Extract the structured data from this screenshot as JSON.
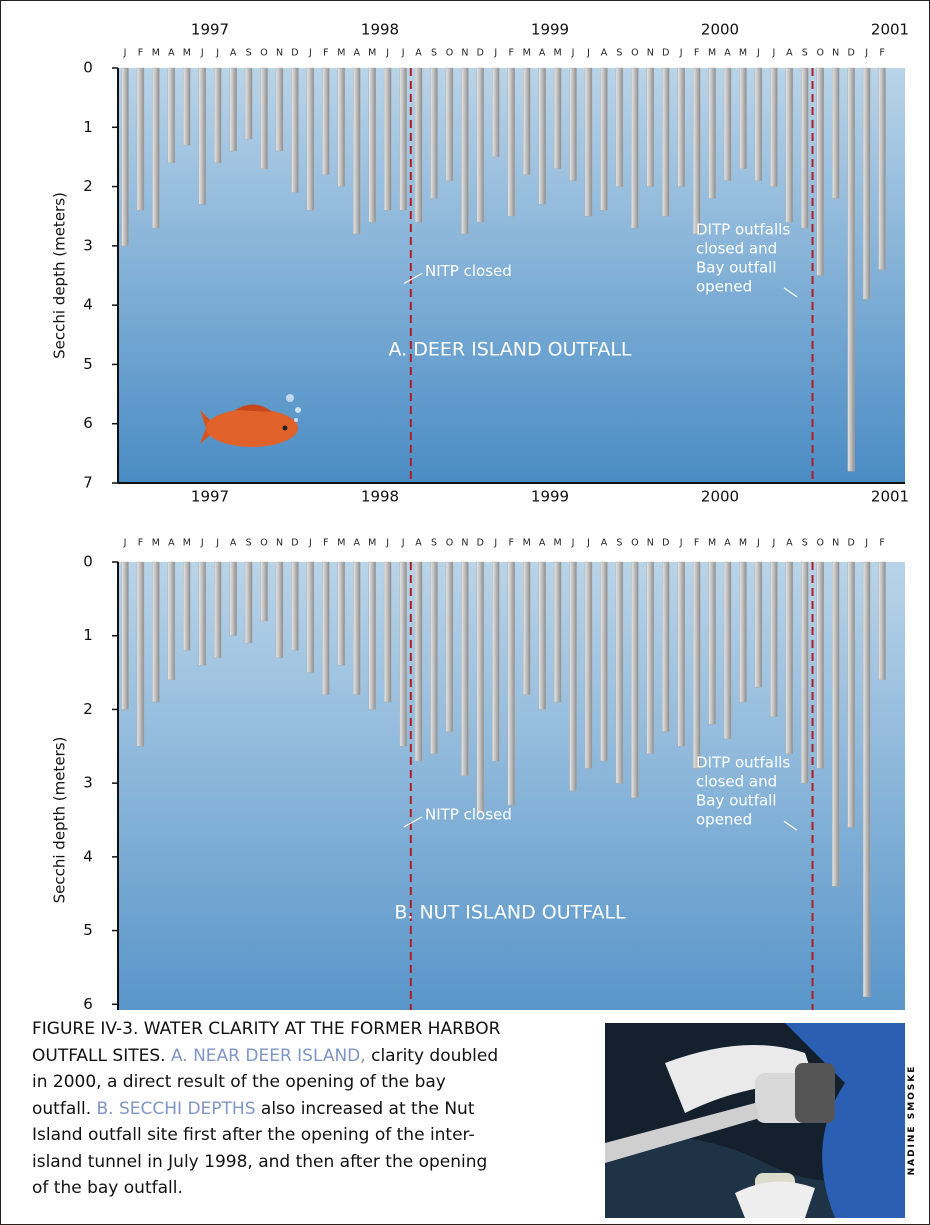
{
  "chart_data": [
    {
      "type": "bar",
      "subtitle": "A. DEER ISLAND OUTFALL",
      "y_label": "Secchi depth (meters)",
      "years": [
        "1997",
        "1998",
        "1999",
        "2000",
        "2001"
      ],
      "categories": [
        "J",
        "F",
        "M",
        "A",
        "M",
        "J",
        "J",
        "A",
        "S",
        "O",
        "N",
        "D",
        "J",
        "F",
        "M",
        "A",
        "M",
        "J",
        "J",
        "A",
        "S",
        "O",
        "N",
        "D",
        "J",
        "F",
        "M",
        "A",
        "M",
        "J",
        "J",
        "A",
        "S",
        "O",
        "N",
        "D",
        "J",
        "F",
        "M",
        "A",
        "M",
        "J",
        "J",
        "A",
        "S",
        "O",
        "N",
        "D",
        "J",
        "F"
      ],
      "values": [
        3.0,
        2.4,
        2.7,
        1.6,
        1.3,
        2.3,
        1.6,
        1.4,
        1.2,
        1.7,
        1.4,
        2.1,
        2.4,
        1.8,
        2.0,
        2.8,
        2.6,
        2.4,
        2.4,
        2.6,
        2.2,
        1.9,
        2.8,
        2.6,
        1.5,
        2.5,
        1.8,
        2.3,
        1.7,
        1.9,
        2.5,
        2.4,
        2.0,
        2.7,
        2.0,
        2.5,
        2.0,
        2.8,
        2.2,
        1.9,
        1.7,
        1.9,
        2.0,
        2.6,
        2.7,
        3.5,
        2.2,
        6.8,
        3.9,
        3.4
      ],
      "color": "#a9a9a9",
      "ylim": [
        0,
        7
      ],
      "yticks": [
        0,
        1,
        2,
        3,
        4,
        5,
        6,
        7
      ],
      "y_inverted": true,
      "annotations": [
        {
          "lines": [
            "NITP closed"
          ]
        },
        {
          "lines": [
            "DITP outfalls",
            "closed and",
            "Bay outfall",
            "opened"
          ]
        }
      ]
    },
    {
      "type": "bar",
      "subtitle": "B. NUT ISLAND OUTFALL",
      "y_label": "Secchi depth (meters)",
      "years": [
        "1997",
        "1998",
        "1999",
        "2000",
        "2001"
      ],
      "categories": [
        "J",
        "F",
        "M",
        "A",
        "M",
        "J",
        "J",
        "A",
        "S",
        "O",
        "N",
        "D",
        "J",
        "F",
        "M",
        "A",
        "M",
        "J",
        "J",
        "A",
        "S",
        "O",
        "N",
        "D",
        "J",
        "F",
        "M",
        "A",
        "M",
        "J",
        "J",
        "A",
        "S",
        "O",
        "N",
        "D",
        "J",
        "F",
        "M",
        "A",
        "M",
        "J",
        "J",
        "A",
        "S",
        "O",
        "N",
        "D",
        "J",
        "F"
      ],
      "values": [
        2.0,
        2.5,
        1.9,
        1.6,
        1.2,
        1.4,
        1.3,
        1.0,
        1.1,
        0.8,
        1.3,
        1.2,
        1.5,
        1.8,
        1.4,
        1.8,
        2.0,
        1.9,
        2.5,
        2.7,
        2.6,
        2.3,
        2.9,
        3.4,
        2.7,
        3.3,
        1.8,
        2.0,
        1.9,
        3.1,
        2.8,
        2.7,
        3.0,
        3.2,
        2.6,
        2.3,
        2.5,
        2.8,
        2.2,
        2.4,
        1.9,
        1.7,
        2.1,
        2.6,
        3.0,
        2.8,
        4.4,
        3.6,
        5.9,
        1.6
      ],
      "color": "#a9a9a9",
      "ylim": [
        0,
        7
      ],
      "yticks": [
        0,
        1,
        2,
        3,
        4,
        5,
        6,
        7
      ],
      "y_inverted": true,
      "annotations": [
        {
          "lines": [
            "NITP closed"
          ]
        },
        {
          "lines": [
            "DITP outfalls",
            "closed and",
            "Bay outfall",
            "opened"
          ]
        }
      ]
    }
  ],
  "caption": {
    "title": "FIGURE IV-3. WATER CLARITY AT THE FORMER HARBOR OUTFALL SITES.",
    "part_a_label": "A. NEAR DEER ISLAND,",
    "part_a_text": "clarity doubled in 2000, a direct result of the opening of the bay outfall.",
    "part_b_label": "B. SECCHI DEPTHS",
    "part_b_text": "also increased at the Nut Island outfall site first after the opening of the inter-island tunnel in July 1998, and then after the opening of the bay outfall.",
    "photo_credit": "NADINE SMOSKE"
  }
}
